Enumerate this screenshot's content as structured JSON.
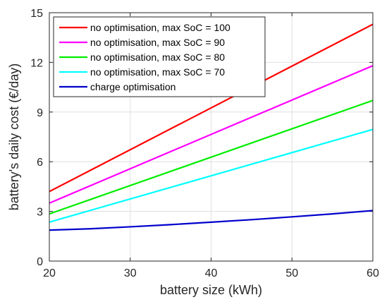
{
  "chart_data": {
    "type": "line",
    "xlabel": "battery size (kWh)",
    "ylabel": "battery's daily cost (€/day)",
    "xlim": [
      20,
      60
    ],
    "ylim": [
      0,
      15
    ],
    "xticks": [
      "20",
      "30",
      "40",
      "50",
      "60"
    ],
    "yticks": [
      "0",
      "3",
      "6",
      "9",
      "12",
      "15"
    ],
    "grid": true,
    "legend_position": "top-left",
    "series": [
      {
        "name": "no optimisation, max SoC = 100",
        "color": "#ff0000",
        "x": [
          20,
          60
        ],
        "y": [
          4.2,
          14.3
        ]
      },
      {
        "name": "no optimisation, max SoC = 90",
        "color": "#ff00ff",
        "x": [
          20,
          60
        ],
        "y": [
          3.5,
          11.8
        ]
      },
      {
        "name": "no optimisation, max SoC = 80",
        "color": "#00ee00",
        "x": [
          20,
          60
        ],
        "y": [
          2.85,
          9.7
        ]
      },
      {
        "name": "no optimisation, max SoC = 70",
        "color": "#00ffff",
        "x": [
          20,
          60
        ],
        "y": [
          2.35,
          7.95
        ]
      },
      {
        "name": "charge optimisation",
        "color": "#0000cc",
        "x": [
          20,
          25,
          30,
          35,
          40,
          45,
          50,
          55,
          60
        ],
        "y": [
          1.87,
          1.95,
          2.07,
          2.2,
          2.35,
          2.5,
          2.67,
          2.85,
          3.05
        ]
      }
    ]
  }
}
